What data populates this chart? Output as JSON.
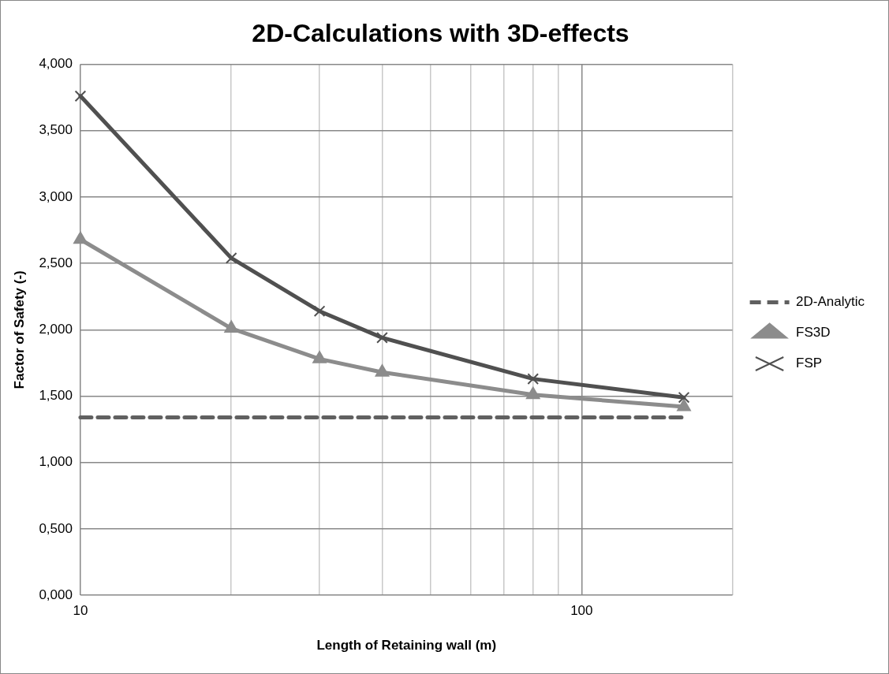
{
  "chart_data": {
    "type": "line",
    "title": "2D-Calculations with 3D-effects",
    "xlabel": "Length of Retaining wall (m)",
    "ylabel": "Factor of Safety (-)",
    "x": [
      10,
      20,
      30,
      40,
      80,
      160
    ],
    "series": [
      {
        "name": "2D-Analytic",
        "color": "#606060",
        "values": [
          1.34,
          1.34,
          1.34,
          1.34,
          1.34,
          1.34
        ],
        "line_style": "dashed",
        "marker": "none"
      },
      {
        "name": "FS3D",
        "color": "#8c8c8c",
        "values": [
          2.68,
          2.01,
          1.78,
          1.68,
          1.51,
          1.42
        ],
        "line_style": "solid",
        "marker": "triangle"
      },
      {
        "name": "FSP",
        "color": "#505050",
        "values": [
          3.76,
          2.54,
          2.14,
          1.94,
          1.63,
          1.49
        ],
        "line_style": "solid",
        "marker": "cross"
      }
    ],
    "log": "x",
    "xlim": [
      10,
      200
    ],
    "xticks": [
      10,
      {
        "value": 20,
        "label": null
      },
      {
        "value": 30,
        "label": null
      },
      {
        "value": 40,
        "label": null
      },
      {
        "value": 50,
        "label": null
      },
      {
        "value": 60,
        "label": null
      },
      {
        "value": 70,
        "label": null
      },
      {
        "value": 80,
        "label": null
      },
      {
        "value": 90,
        "label": null
      },
      100,
      {
        "value": 200,
        "label": null
      }
    ],
    "ylim": [
      0,
      4
    ],
    "yticks": [
      {
        "value": 0,
        "label": "0,000"
      },
      {
        "value": 0.5,
        "label": "0,500"
      },
      {
        "value": 1,
        "label": "1,000"
      },
      {
        "value": 1.5,
        "label": "1,500"
      },
      {
        "value": 2,
        "label": "2,000"
      },
      {
        "value": 2.5,
        "label": "2,500"
      },
      {
        "value": 3,
        "label": "3,000"
      },
      {
        "value": 3.5,
        "label": "3,500"
      },
      {
        "value": 4,
        "label": "4,000"
      }
    ],
    "grid": true,
    "legend": "right"
  }
}
